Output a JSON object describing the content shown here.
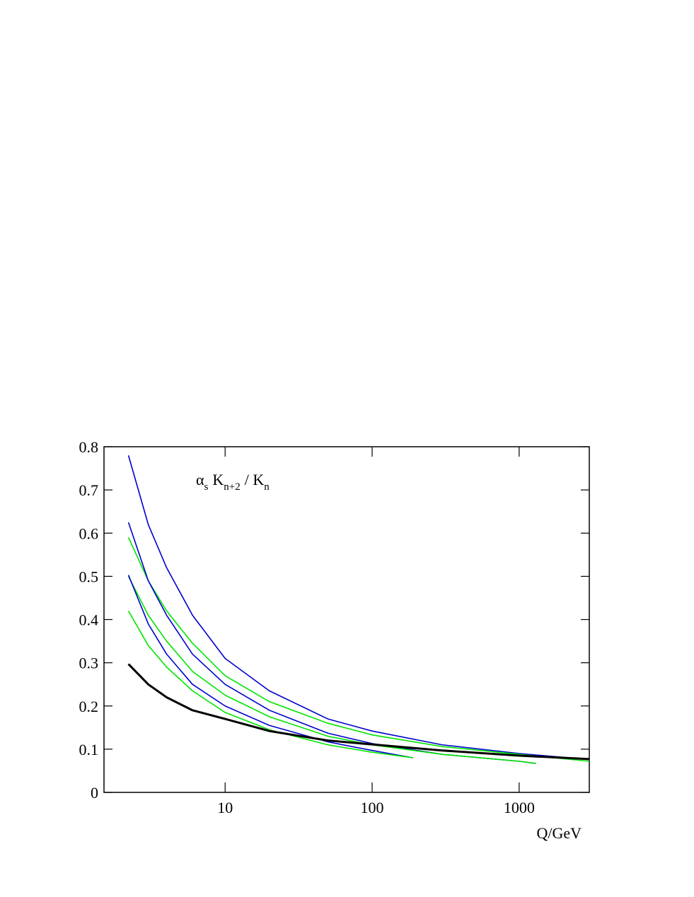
{
  "chart_data": {
    "type": "line",
    "log_x": true,
    "annotation": [
      {
        "text": "α",
        "sub": false
      },
      {
        "text": "s",
        "sub": true
      },
      {
        "text": "K",
        "sub": false
      },
      {
        "text": "n+2",
        "sub": true
      },
      {
        "text": "/ K",
        "sub": false
      },
      {
        "text": "n",
        "sub": true
      }
    ],
    "x_label": "Q/GeV",
    "xlim": [
      1.5,
      3000
    ],
    "xticks": [
      10,
      100,
      1000
    ],
    "ylim": [
      0,
      0.8
    ],
    "yticks": [
      0,
      0.1,
      0.2,
      0.3,
      0.4,
      0.5,
      0.6,
      0.7,
      0.8
    ],
    "series": [
      {
        "color": "#0000cc",
        "x": [
          2.2,
          3,
          4,
          6,
          10,
          20,
          50,
          100,
          300,
          1000,
          3000
        ],
        "values": [
          0.78,
          0.62,
          0.52,
          0.41,
          0.31,
          0.235,
          0.17,
          0.142,
          0.11,
          0.09,
          0.076
        ]
      },
      {
        "color": "#00e600",
        "x": [
          2.2,
          3,
          4,
          6,
          10,
          20,
          50,
          100,
          300,
          1000,
          3000
        ],
        "values": [
          0.59,
          0.49,
          0.42,
          0.345,
          0.27,
          0.21,
          0.16,
          0.133,
          0.106,
          0.088,
          0.072
        ]
      },
      {
        "color": "#0000cc",
        "x": [
          2.2,
          3,
          4,
          6,
          10,
          20,
          50,
          100,
          300,
          1000,
          1300
        ],
        "values": [
          0.625,
          0.49,
          0.41,
          0.32,
          0.25,
          0.19,
          0.137,
          0.113,
          0.088,
          0.072,
          0.067
        ]
      },
      {
        "color": "#00e600",
        "x": [
          2.2,
          3,
          4,
          6,
          10,
          20,
          50,
          100,
          300,
          1000,
          1300
        ],
        "values": [
          0.5,
          0.41,
          0.35,
          0.28,
          0.225,
          0.175,
          0.13,
          0.11,
          0.088,
          0.072,
          0.067
        ]
      },
      {
        "color": "#0000cc",
        "x": [
          2.2,
          3,
          4,
          6,
          10,
          20,
          50,
          100,
          190
        ],
        "values": [
          0.503,
          0.39,
          0.32,
          0.25,
          0.2,
          0.155,
          0.117,
          0.097,
          0.08
        ]
      },
      {
        "color": "#00e600",
        "x": [
          2.2,
          3,
          4,
          6,
          10,
          20,
          50,
          100,
          190
        ],
        "values": [
          0.42,
          0.34,
          0.29,
          0.235,
          0.185,
          0.145,
          0.11,
          0.093,
          0.08
        ]
      },
      {
        "color": "#000000",
        "width": 3,
        "x": [
          2.2,
          3,
          4,
          6,
          10,
          20,
          50,
          100,
          300,
          1000,
          3000
        ],
        "values": [
          0.297,
          0.25,
          0.22,
          0.19,
          0.17,
          0.142,
          0.12,
          0.111,
          0.097,
          0.085,
          0.077
        ]
      }
    ]
  }
}
